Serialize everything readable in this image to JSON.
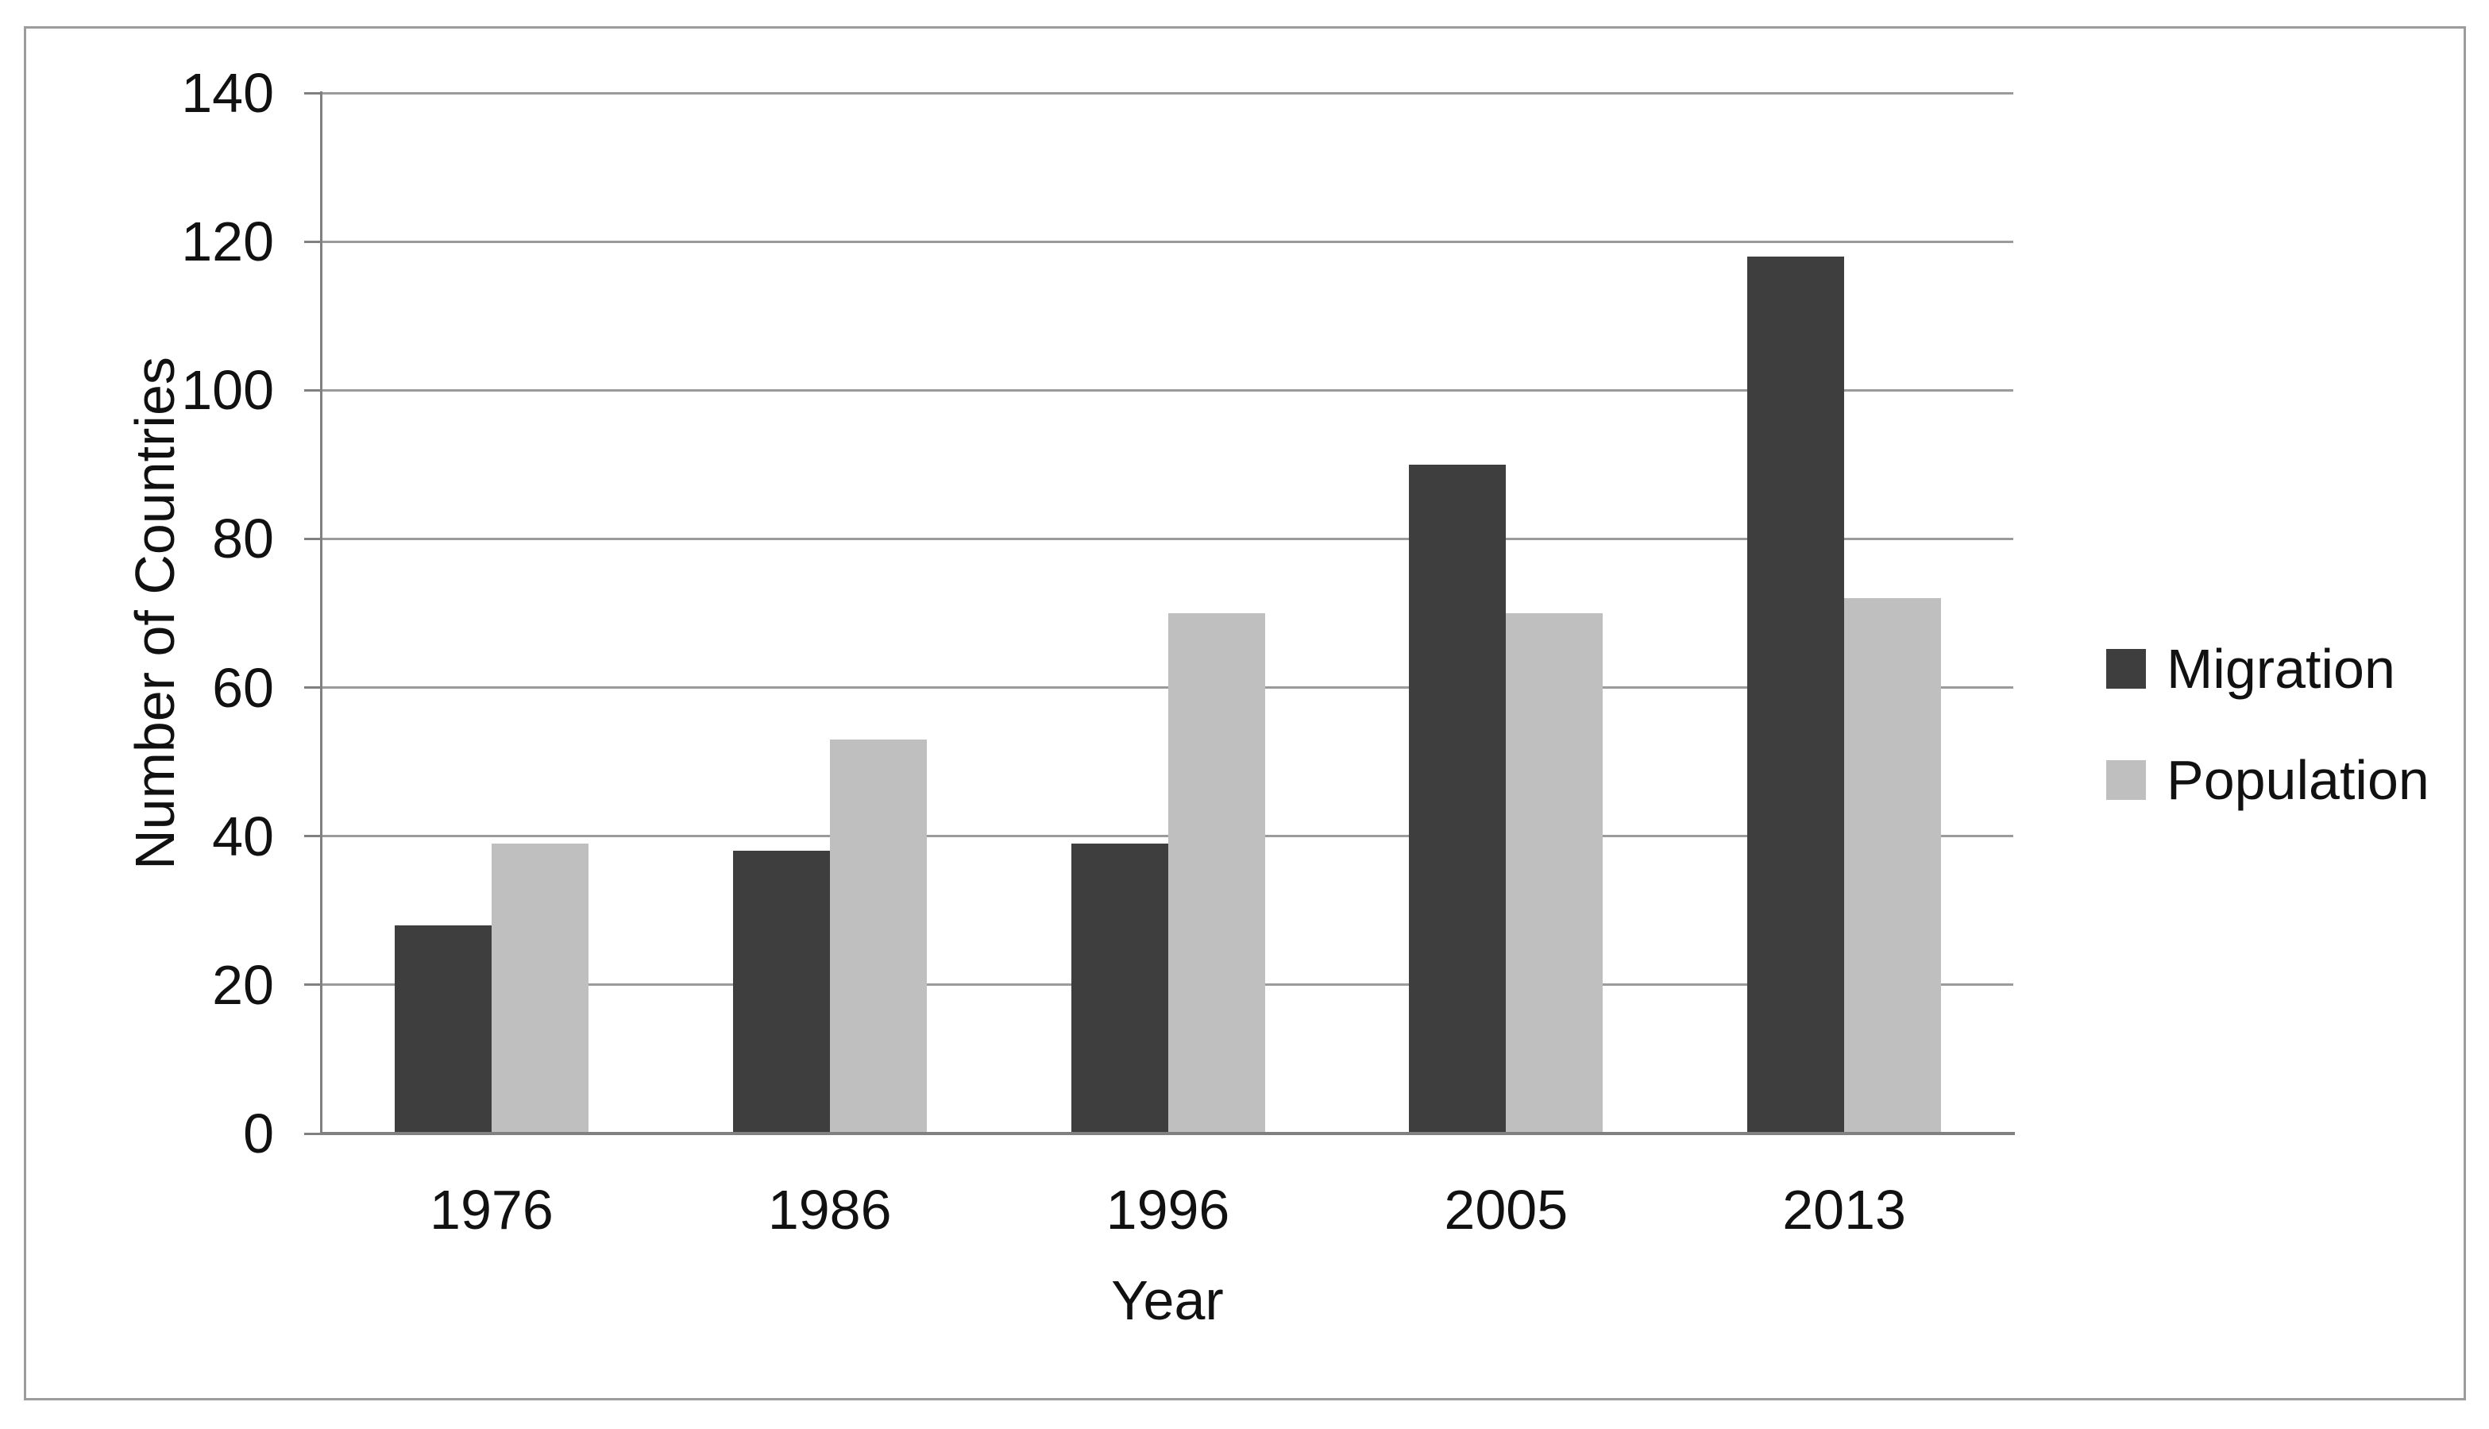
{
  "chart_data": {
    "type": "bar",
    "title": "",
    "categories": [
      "1976",
      "1986",
      "1996",
      "2005",
      "2013"
    ],
    "series": [
      {
        "name": "Migration",
        "color": "#3e3e3e",
        "values": [
          28,
          38,
          39,
          90,
          118
        ]
      },
      {
        "name": "Population",
        "color": "#bfbfbf",
        "values": [
          39,
          53,
          70,
          70,
          72
        ]
      }
    ],
    "xlabel": "Year",
    "ylabel": "Number of Countries",
    "ylim": [
      0,
      140
    ],
    "yticks": [
      0,
      20,
      40,
      60,
      80,
      100,
      120,
      140
    ],
    "grid": "horizontal",
    "legend_position": "right"
  },
  "colors": {
    "bar_migration": "#3e3e3e",
    "bar_population": "#bfbfbf",
    "gridline": "#9b9b9b",
    "axis": "#808080",
    "frame_border": "#9c9c9c",
    "text": "#111111",
    "background": "#ffffff"
  }
}
